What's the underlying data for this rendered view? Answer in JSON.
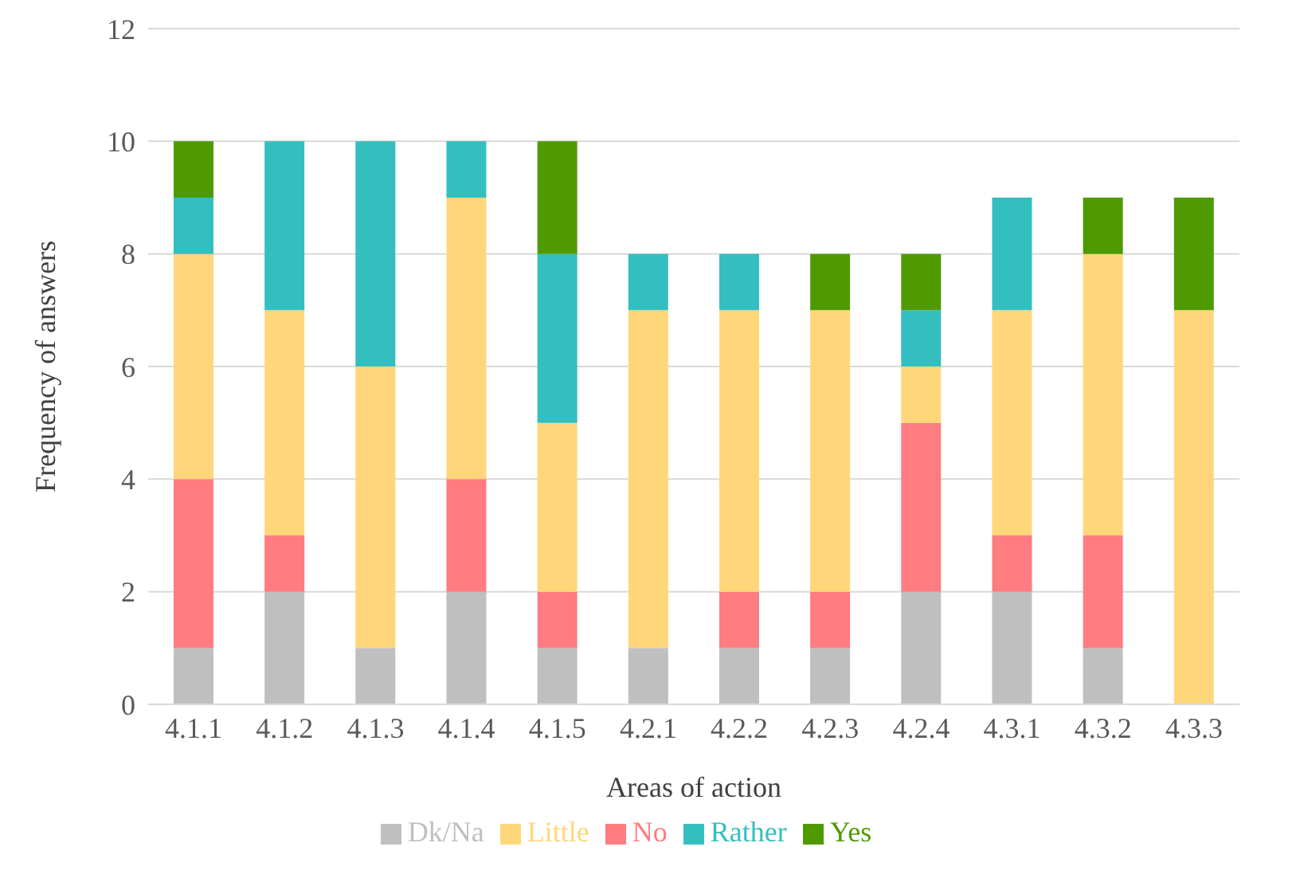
{
  "chart_data": {
    "type": "bar",
    "stacked": true,
    "xlabel": "Areas of action",
    "ylabel": "Frequency of answers",
    "categories": [
      "4.1.1",
      "4.1.2",
      "4.1.3",
      "4.1.4",
      "4.1.5",
      "4.2.1",
      "4.2.2",
      "4.2.3",
      "4.2.4",
      "4.3.1",
      "4.3.2",
      "4.3.3"
    ],
    "series": [
      {
        "name": "Dk/Na",
        "color": "#bfbfbf",
        "values": [
          1,
          2,
          1,
          2,
          1,
          1,
          1,
          1,
          2,
          2,
          1,
          0
        ]
      },
      {
        "name": "No",
        "color": "#ff7c80",
        "values": [
          3,
          1,
          0,
          2,
          1,
          0,
          1,
          1,
          3,
          1,
          2,
          0
        ]
      },
      {
        "name": "Little",
        "color": "#ffd67a",
        "values": [
          4,
          4,
          5,
          5,
          3,
          6,
          5,
          5,
          1,
          4,
          5,
          7
        ]
      },
      {
        "name": "Rather",
        "color": "#33bfbf",
        "values": [
          1,
          3,
          4,
          1,
          3,
          1,
          1,
          0,
          1,
          2,
          0,
          0
        ]
      },
      {
        "name": "Yes",
        "color": "#4f9a00",
        "values": [
          1,
          0,
          0,
          0,
          2,
          0,
          0,
          1,
          1,
          0,
          1,
          2
        ]
      }
    ],
    "ylim": [
      0,
      12
    ],
    "yticks": [
      0,
      2,
      4,
      6,
      8,
      10,
      12
    ],
    "grid": "y",
    "legend": "bottom"
  }
}
